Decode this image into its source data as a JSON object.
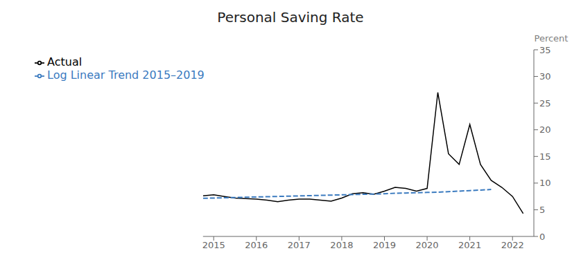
{
  "chart_data": {
    "type": "line",
    "title": "Personal Saving Rate",
    "ylabel": "Percent",
    "xlim": [
      2014.75,
      2022.5
    ],
    "xticks": [
      2015,
      2016,
      2017,
      2018,
      2019,
      2020,
      2021,
      2022
    ],
    "ylim": [
      0,
      35
    ],
    "yticks": [
      0,
      5,
      10,
      15,
      20,
      25,
      30,
      35
    ],
    "legend": "upper left",
    "series": [
      {
        "name": "Actual",
        "color": "#000000",
        "line_style": "solid",
        "x": [
          2014.75,
          2015.0,
          2015.25,
          2015.5,
          2015.75,
          2016.0,
          2016.25,
          2016.5,
          2016.75,
          2017.0,
          2017.25,
          2017.5,
          2017.75,
          2018.0,
          2018.25,
          2018.5,
          2018.75,
          2019.0,
          2019.25,
          2019.5,
          2019.75,
          2020.0,
          2020.25,
          2020.5,
          2020.75,
          2021.0,
          2021.25,
          2021.5,
          2021.75,
          2022.0,
          2022.25
        ],
        "values": [
          7.6,
          7.8,
          7.5,
          7.2,
          7.1,
          7.0,
          6.8,
          6.5,
          6.8,
          7.0,
          7.0,
          6.8,
          6.6,
          7.2,
          8.0,
          8.2,
          7.9,
          8.5,
          9.2,
          9.0,
          8.5,
          9.0,
          27.0,
          15.5,
          13.5,
          21.0,
          13.5,
          10.5,
          9.2,
          7.5,
          4.3
        ]
      },
      {
        "name": "Log Linear Trend 2015–2019",
        "color": "#3a7abf",
        "line_style": "dashed",
        "x": [
          2014.75,
          2015.0,
          2015.25,
          2015.5,
          2015.75,
          2016.0,
          2016.25,
          2016.5,
          2016.75,
          2017.0,
          2017.25,
          2017.5,
          2017.75,
          2018.0,
          2018.25,
          2018.5,
          2018.75,
          2019.0,
          2019.25,
          2019.5,
          2019.75,
          2020.0,
          2020.25,
          2020.5,
          2020.75,
          2021.0,
          2021.25,
          2021.5
        ],
        "values": [
          7.15,
          7.2,
          7.25,
          7.3,
          7.35,
          7.4,
          7.45,
          7.5,
          7.55,
          7.6,
          7.65,
          7.7,
          7.75,
          7.8,
          7.85,
          7.9,
          7.95,
          8.0,
          8.1,
          8.15,
          8.2,
          8.25,
          8.3,
          8.4,
          8.5,
          8.6,
          8.7,
          8.8
        ]
      }
    ]
  }
}
